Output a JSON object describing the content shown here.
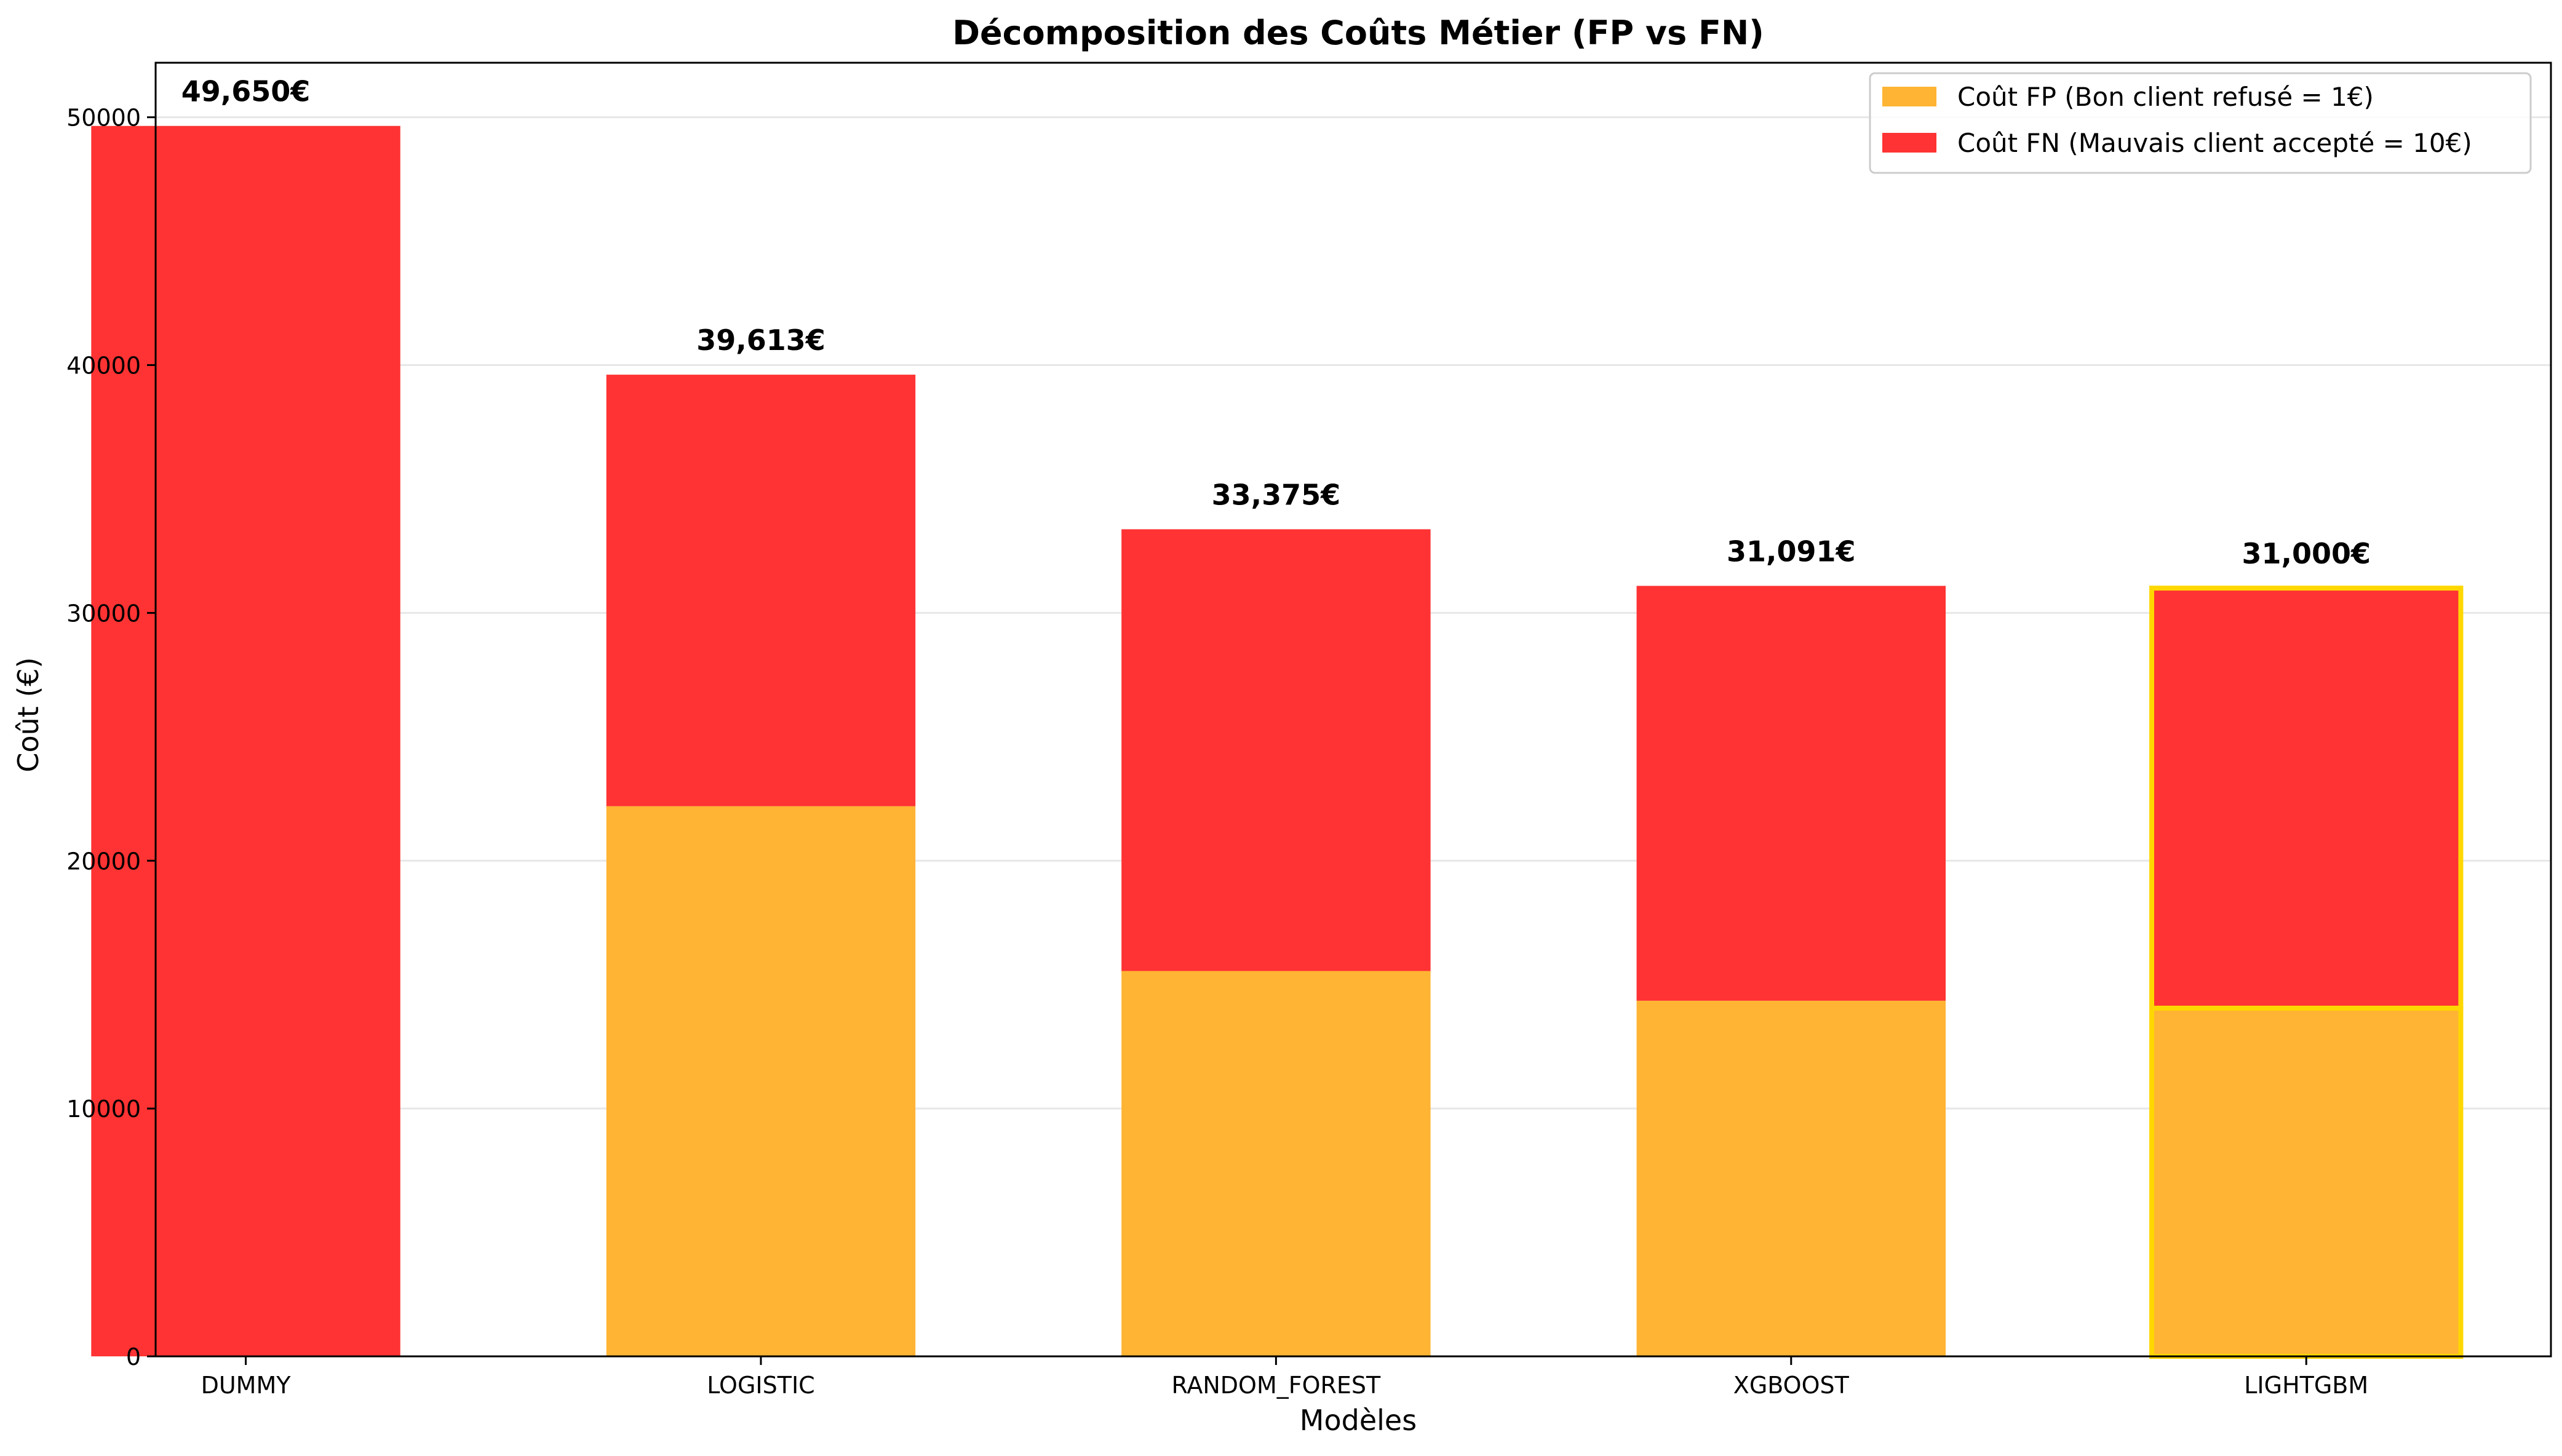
{
  "chart_data": {
    "type": "bar",
    "stacked": true,
    "title": "Décomposition des Coûts Métier (FP vs FN)",
    "xlabel": "Modèles",
    "ylabel": "Coût (€)",
    "ylim": [
      0,
      52200
    ],
    "yticks": [
      0,
      10000,
      20000,
      30000,
      40000,
      50000
    ],
    "ytick_labels": [
      "0",
      "10000",
      "20000",
      "30000",
      "40000",
      "50000"
    ],
    "grid": "horizontal",
    "legend_position": "top-right",
    "categories": [
      "DUMMY",
      "LOGISTIC",
      "RANDOM_FOREST",
      "XGBOOST",
      "LIGHTGBM"
    ],
    "series": [
      {
        "name": "Coût FP (Bon client refusé = 1€)",
        "color": "#FFB433",
        "values": [
          0,
          22200,
          15550,
          14350,
          14050
        ]
      },
      {
        "name": "Coût FN (Mauvais client accepté = 10€)",
        "color": "#FF3333",
        "values": [
          49650,
          17413,
          17825,
          16741,
          16950
        ]
      }
    ],
    "totals": [
      49650,
      39613,
      33375,
      31091,
      31000
    ],
    "total_labels": [
      "49,650€",
      "39,613€",
      "33,375€",
      "31,091€",
      "31,000€"
    ],
    "highlighted_category": "LIGHTGBM",
    "highlight_color": "#FFD700"
  }
}
